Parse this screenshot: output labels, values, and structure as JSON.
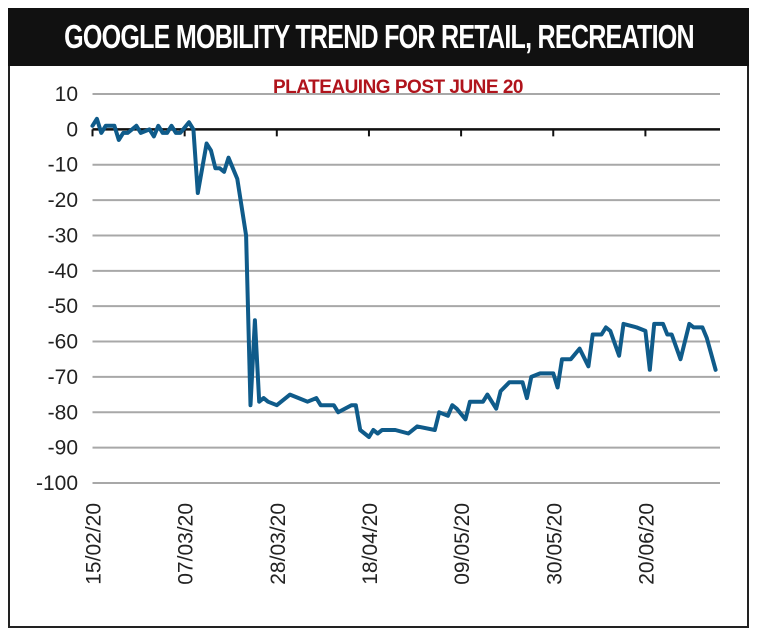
{
  "chart_data": {
    "type": "line",
    "title": "GOOGLE MOBILITY TREND FOR RETAIL, RECREATION",
    "subtitle": "PLATEAUING POST JUNE 20",
    "xlabel": "",
    "ylabel": "",
    "ylim": [
      -100,
      10
    ],
    "yticks": [
      "10",
      "0",
      "-10",
      "-20",
      "-30",
      "-40",
      "-50",
      "-60",
      "-70",
      "-80",
      "-90",
      "-100"
    ],
    "xlim": [
      "2020-02-15",
      "2020-07-07"
    ],
    "xticks": [
      {
        "date": "2020-02-15",
        "label": "15/02/20"
      },
      {
        "date": "2020-03-07",
        "label": "07/03/20"
      },
      {
        "date": "2020-03-28",
        "label": "28/03/20"
      },
      {
        "date": "2020-04-18",
        "label": "18/04/20"
      },
      {
        "date": "2020-05-09",
        "label": "09/05/20"
      },
      {
        "date": "2020-05-30",
        "label": "30/05/20"
      },
      {
        "date": "2020-06-20",
        "label": "20/06/20"
      }
    ],
    "grid": "horizontal",
    "line_color": "#0f5b8a",
    "title_color": "#111111",
    "subtitle_color": "#b0141c",
    "series": [
      {
        "x": [
          "2020-02-15",
          "2020-02-16",
          "2020-02-17",
          "2020-02-18",
          "2020-02-20",
          "2020-02-21",
          "2020-02-22",
          "2020-02-23",
          "2020-02-24",
          "2020-02-25",
          "2020-02-26",
          "2020-02-28",
          "2020-02-29",
          "2020-03-01",
          "2020-03-02",
          "2020-03-03",
          "2020-03-04",
          "2020-03-05",
          "2020-03-06",
          "2020-03-08",
          "2020-03-09",
          "2020-03-10",
          "2020-03-12",
          "2020-03-13",
          "2020-03-14",
          "2020-03-15",
          "2020-03-16",
          "2020-03-17",
          "2020-03-18",
          "2020-03-19",
          "2020-03-20",
          "2020-03-21",
          "2020-03-22",
          "2020-03-23",
          "2020-03-24",
          "2020-03-25",
          "2020-03-26",
          "2020-03-28",
          "2020-03-31",
          "2020-04-02",
          "2020-04-04",
          "2020-04-06",
          "2020-04-07",
          "2020-04-10",
          "2020-04-11",
          "2020-04-14",
          "2020-04-15",
          "2020-04-16",
          "2020-04-18",
          "2020-04-19",
          "2020-04-20",
          "2020-04-21",
          "2020-04-24",
          "2020-04-27",
          "2020-04-29",
          "2020-05-03",
          "2020-05-04",
          "2020-05-06",
          "2020-05-07",
          "2020-05-08",
          "2020-05-10",
          "2020-05-11",
          "2020-05-14",
          "2020-05-15",
          "2020-05-17",
          "2020-05-18",
          "2020-05-20",
          "2020-05-23",
          "2020-05-24",
          "2020-05-25",
          "2020-05-27",
          "2020-05-30",
          "2020-05-31",
          "2020-06-01",
          "2020-06-03",
          "2020-06-05",
          "2020-06-07",
          "2020-06-08",
          "2020-06-10",
          "2020-06-11",
          "2020-06-12",
          "2020-06-14",
          "2020-06-15",
          "2020-06-18",
          "2020-06-20",
          "2020-06-21",
          "2020-06-22",
          "2020-06-24",
          "2020-06-25",
          "2020-06-26",
          "2020-06-28",
          "2020-06-30",
          "2020-07-01",
          "2020-07-03",
          "2020-07-04",
          "2020-07-06"
        ],
        "y": [
          1,
          3,
          -1,
          1,
          1,
          -3,
          -1,
          -1,
          0,
          1,
          -1,
          0,
          -2,
          1,
          -1,
          -1,
          1,
          -1,
          -1,
          2,
          0,
          -18,
          -4,
          -6,
          -11,
          -11,
          -12,
          -8,
          -11,
          -14,
          -22,
          -30,
          -78,
          -54,
          -77,
          -76,
          -77,
          -78,
          -75,
          -76,
          -77,
          -76,
          -78,
          -78,
          -80,
          -78,
          -78,
          -85,
          -87,
          -85,
          -86,
          -85,
          -85,
          -86,
          -84,
          -85,
          -80,
          -81,
          -78,
          -79,
          -82,
          -77,
          -77,
          -75,
          -79,
          -74,
          -71.5,
          -71.5,
          -76,
          -70,
          -69,
          -69,
          -73,
          -65,
          -65,
          -62,
          -67,
          -58,
          -58,
          -56,
          -57,
          -64,
          -55,
          -56,
          -57,
          -68,
          -55,
          -55,
          -58,
          -58,
          -65,
          -55,
          -56,
          -56,
          -59,
          -68
        ]
      }
    ]
  }
}
